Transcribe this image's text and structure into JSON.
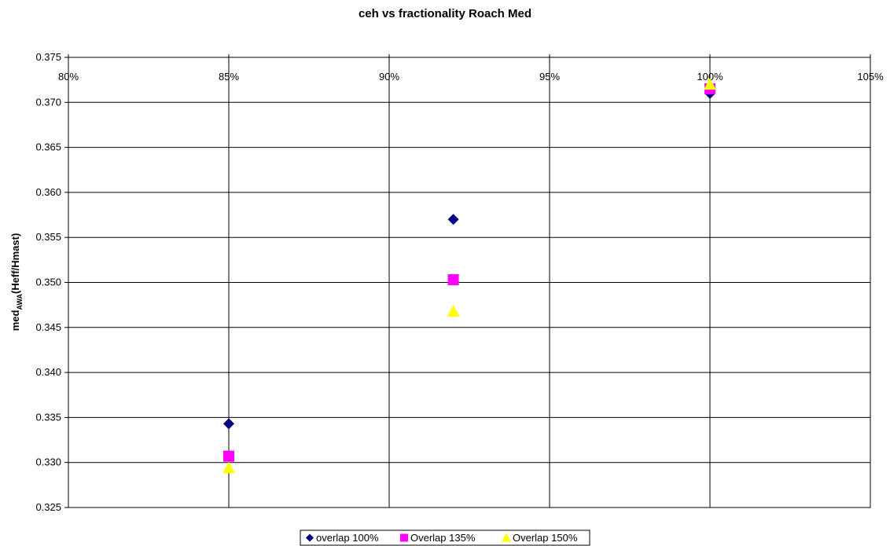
{
  "chart_data": {
    "type": "scatter",
    "title": "ceh vs fractionality Roach Med",
    "ylabel_main": "med",
    "ylabel_sub": "AWA",
    "ylabel_rest": "(Heff/Hmast)",
    "xlabel": "",
    "xlim": [
      0.8,
      1.05
    ],
    "ylim": [
      0.325,
      0.375
    ],
    "x_ticks": [
      0.8,
      0.85,
      0.9,
      0.95,
      1.0,
      1.05
    ],
    "x_tick_labels": [
      "80%",
      "85%",
      "90%",
      "95%",
      "100%",
      "105%"
    ],
    "y_ticks": [
      0.325,
      0.33,
      0.335,
      0.34,
      0.345,
      0.35,
      0.355,
      0.36,
      0.365,
      0.37,
      0.375
    ],
    "y_tick_labels": [
      "0.325",
      "0.330",
      "0.335",
      "0.340",
      "0.345",
      "0.350",
      "0.355",
      "0.360",
      "0.365",
      "0.370",
      "0.375"
    ],
    "grid": true,
    "x_axis_position": "top",
    "legend_position": "bottom-center",
    "series": [
      {
        "name": "overlap 100%",
        "marker": "diamond",
        "color": "#000080",
        "x": [
          0.85,
          0.92,
          1.0
        ],
        "y": [
          0.3343,
          0.357,
          0.371
        ]
      },
      {
        "name": "Overlap 135%",
        "marker": "square",
        "color": "#ff00ff",
        "x": [
          0.85,
          0.92,
          1.0
        ],
        "y": [
          0.3307,
          0.3503,
          0.3715
        ]
      },
      {
        "name": "Overlap 150%",
        "marker": "triangle",
        "color": "#ffff00",
        "x": [
          0.85,
          0.92,
          1.0
        ],
        "y": [
          0.3294,
          0.3468,
          0.372
        ]
      }
    ]
  }
}
